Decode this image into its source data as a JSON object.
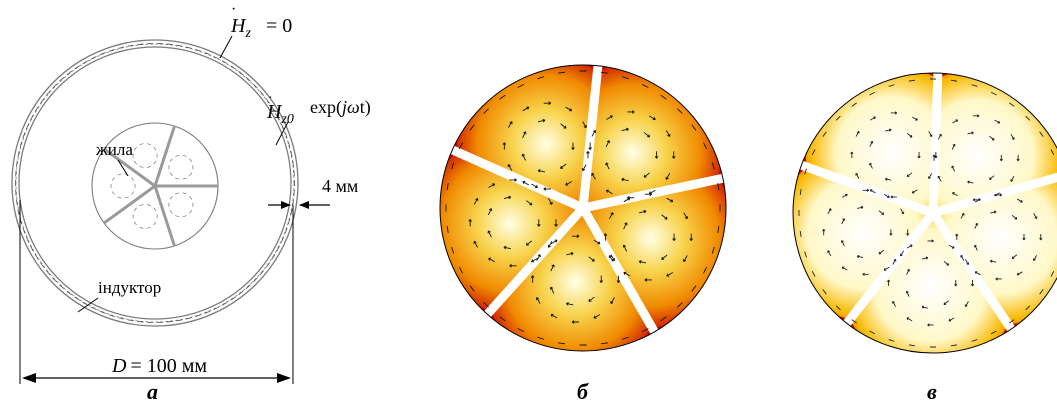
{
  "colors": {
    "background": "#ffffff",
    "line": "#000000",
    "inductor": "#7a7a7a",
    "heat_hot": "#c40000",
    "heat_mid": "#f5a000",
    "heat_cool": "#ffffe6"
  },
  "panel_a": {
    "label": "a",
    "bc_zero_label": "= 0",
    "bc_source_label": "exp(",
    "bc_source_tail": "t)",
    "field_symbol": "H",
    "field_sub": "z",
    "field_sub0": "z0",
    "j_symbol": "j",
    "omega_symbol": "ω",
    "core_label": "жила",
    "inductor_label": "індуктор",
    "thickness_label": "4 мм",
    "diameter_symbol": "D",
    "diameter_label": "= 100 мм"
  },
  "panel_b": {
    "label": "б"
  },
  "panel_c": {
    "label": "в"
  }
}
